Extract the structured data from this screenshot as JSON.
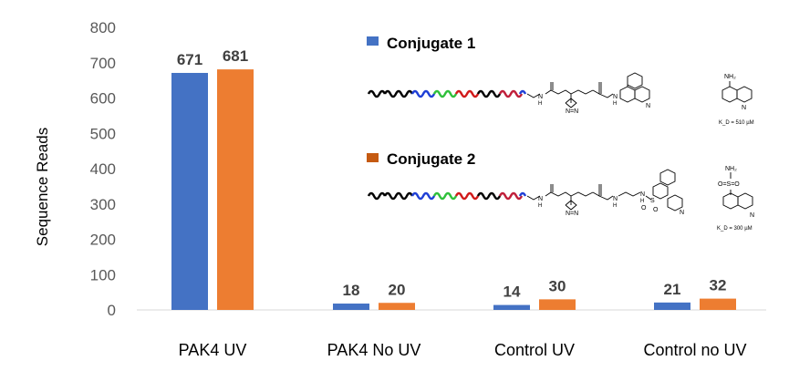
{
  "chart_data": {
    "type": "bar",
    "title": "",
    "xlabel": "",
    "ylabel": "Sequence Reads",
    "ylim": [
      0,
      800
    ],
    "yticks": [
      0,
      100,
      200,
      300,
      400,
      500,
      600,
      700,
      800
    ],
    "categories": [
      "PAK4 UV",
      "PAK4 No UV",
      "Control UV",
      "Control no UV"
    ],
    "series": [
      {
        "name": "Conjugate 1",
        "color": "#4472C4",
        "values": [
          671,
          18,
          14,
          21
        ]
      },
      {
        "name": "Conjugate 2",
        "color": "#ED7D31",
        "values": [
          681,
          20,
          30,
          32
        ]
      }
    ],
    "grid": false,
    "legend_position": "top-right"
  },
  "legend_markers": {
    "conjugate1": "#4472C4",
    "conjugate2": "#C55A11"
  },
  "structures": {
    "conjugate1": {
      "nh_amide1": "N",
      "nh_amide1_h": "H",
      "nh_amide2": "N",
      "nh_amide2_h": "H",
      "diazirine": "N=N",
      "ring_n": "N"
    },
    "conjugate2": {
      "nh_amide1": "N",
      "nh_amide1_h": "H",
      "nh_amide2": "N",
      "nh_amide2_h": "H",
      "diazirine": "N=N",
      "sulfonamide": "N",
      "sulfonamide_h": "H",
      "sulfur": "S",
      "oxygen1": "O",
      "oxygen2": "O",
      "ring_n": "N"
    },
    "ref1": {
      "amine": "NH₂",
      "ring_n": "N",
      "kd": "K_D = 510 µM"
    },
    "ref2": {
      "amine": "NH₂",
      "sulfonyl": "O=S=O",
      "ring_n": "N",
      "kd": "K_D = 300 µM"
    }
  }
}
